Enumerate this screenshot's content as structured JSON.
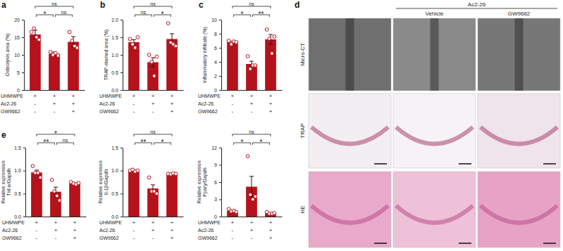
{
  "figure": {
    "panel_labels": [
      "a",
      "b",
      "c",
      "d",
      "e"
    ]
  },
  "treatment_table": {
    "rows": [
      {
        "label": "UHMWPE",
        "signs": [
          "+",
          "+",
          "+"
        ]
      },
      {
        "label": "Ac2-26",
        "signs": [
          "-",
          "+",
          "+"
        ]
      },
      {
        "label": "GW9662",
        "signs": [
          "-",
          "-",
          "+"
        ]
      }
    ]
  },
  "image_panel": {
    "group": "Ac2-26",
    "columns": [
      "Vehicle",
      "GW9662"
    ],
    "rows": [
      "Micro-CT",
      "TRAP",
      "HE"
    ]
  },
  "chart_data": [
    {
      "type": "bar",
      "ylabel": [
        "Osteolysis area (%)"
      ],
      "categories": [
        null,
        null,
        null
      ],
      "values": [
        15.8,
        10.3,
        13.7
      ],
      "errors": [
        1.2,
        0.5,
        1.5
      ],
      "points": [
        [
          16.5,
          17.5,
          15,
          14.3
        ],
        [
          10.8,
          10,
          10.5,
          9.8
        ],
        [
          16.5,
          14,
          12.5,
          12
        ]
      ],
      "color": "#b5121b",
      "ylim": [
        0,
        20
      ],
      "yticks": [
        0,
        5,
        10,
        15,
        20
      ],
      "annotations": [
        {
          "between": [
            0,
            1
          ],
          "label": "*"
        },
        {
          "between": [
            1,
            2
          ],
          "label": "ns"
        },
        {
          "between": [
            0,
            2
          ],
          "label": "ns"
        }
      ]
    },
    {
      "type": "bar",
      "ylabel": [
        "TRAP-stained area (%)"
      ],
      "categories": [
        null,
        null,
        null
      ],
      "values": [
        1.36,
        0.79,
        1.45
      ],
      "errors": [
        0.07,
        0.13,
        0.15
      ],
      "points": [
        [
          1.45,
          1.3,
          1.2,
          1.5
        ],
        [
          1.0,
          0.8,
          0.4,
          0.95
        ],
        [
          1.9,
          1.35,
          1.3,
          1.25
        ]
      ],
      "color": "#b5121b",
      "ylim": [
        0,
        2
      ],
      "yticks": [
        {
          "value": 0,
          "label": "0.0"
        },
        {
          "value": 0.5,
          "label": "0.5"
        },
        {
          "value": 1,
          "label": "1.0"
        },
        {
          "value": 1.5,
          "label": "1.5"
        },
        {
          "value": 2,
          "label": "2.0"
        }
      ],
      "annotations": [
        {
          "between": [
            0,
            1
          ],
          "label": "ns"
        },
        {
          "between": [
            1,
            2
          ],
          "label": "*"
        },
        {
          "between": [
            0,
            2
          ],
          "label": "ns"
        }
      ]
    },
    {
      "type": "bar",
      "ylabel": [
        "Inflammatory infiltrate (%)"
      ],
      "categories": [
        null,
        null,
        null
      ],
      "values": [
        6.8,
        3.7,
        7.2
      ],
      "errors": [
        0.12,
        0.4,
        0.7
      ],
      "points": [
        [
          7.0,
          6.5,
          6.9,
          6.8
        ],
        [
          4.8,
          3.0,
          3.5,
          3.5
        ],
        [
          8.6,
          7.3,
          5.2,
          7.6
        ]
      ],
      "color": "#b5121b",
      "ylim": [
        0,
        10
      ],
      "yticks": [
        0,
        2,
        4,
        6,
        8,
        10
      ],
      "annotations": [
        {
          "between": [
            0,
            1
          ],
          "label": "*"
        },
        {
          "between": [
            1,
            2
          ],
          "label": "**"
        },
        {
          "between": [
            0,
            2
          ],
          "label": "ns"
        }
      ]
    },
    {
      "type": "bar",
      "ylabel": [
        "Relative expression",
        "Tnf-α/Gapdh"
      ],
      "categories": [
        null,
        null,
        null
      ],
      "values": [
        0.96,
        0.54,
        0.72
      ],
      "errors": [
        0.05,
        0.1,
        0.01
      ],
      "points": [
        [
          1.1,
          0.95,
          0.95,
          0.85
        ],
        [
          0.8,
          0.55,
          0.45,
          0.35
        ],
        [
          0.75,
          0.72,
          0.7,
          0.73
        ]
      ],
      "color": "#b5121b",
      "ylim": [
        0,
        1.5
      ],
      "yticks": [
        {
          "value": 0,
          "label": "0.0"
        },
        {
          "value": 0.5,
          "label": "0.5"
        },
        {
          "value": 1,
          "label": "1.0"
        },
        {
          "value": 1.5,
          "label": "1.5"
        }
      ],
      "annotations": [
        {
          "between": [
            0,
            1
          ],
          "label": "**"
        },
        {
          "between": [
            1,
            2
          ],
          "label": "ns"
        },
        {
          "between": [
            0,
            2
          ],
          "label": "*"
        }
      ]
    },
    {
      "type": "bar",
      "ylabel": [
        "Relative expression",
        "Il-1β/Gapdh"
      ],
      "categories": [
        null,
        null,
        null
      ],
      "values": [
        1.0,
        0.61,
        0.93
      ],
      "errors": [
        0.01,
        0.08,
        0.005
      ],
      "points": [
        [
          1.0,
          1.02,
          0.98,
          1.0
        ],
        [
          0.85,
          0.55,
          0.55,
          0.5
        ],
        [
          0.93,
          0.92,
          0.94,
          0.93
        ]
      ],
      "color": "#b5121b",
      "ylim": [
        0,
        1.5
      ],
      "yticks": [
        {
          "value": 0,
          "label": "0.0"
        },
        {
          "value": 0.5,
          "label": "0.5"
        },
        {
          "value": 1,
          "label": "1.0"
        },
        {
          "value": 1.5,
          "label": "1.5"
        }
      ],
      "annotations": [
        {
          "between": [
            0,
            1
          ],
          "label": "**"
        },
        {
          "between": [
            1,
            2
          ],
          "label": "*"
        },
        {
          "between": [
            0,
            2
          ],
          "label": "ns"
        }
      ]
    },
    {
      "type": "bar",
      "ylabel": [
        "Relative expression",
        "Pparγ/Gapdh"
      ],
      "categories": [
        null,
        null,
        null
      ],
      "values": [
        1.0,
        5.2,
        0.6
      ],
      "errors": [
        0.1,
        1.8,
        0.07
      ],
      "points": [
        [
          1.3,
          0.9,
          1.0,
          0.8
        ],
        [
          10.5,
          3.8,
          3,
          3.5
        ],
        [
          0.8,
          0.5,
          0.5,
          0.6
        ]
      ],
      "color": "#b5121b",
      "ylim": [
        0,
        12
      ],
      "yticks": [
        0,
        3,
        6,
        9,
        12
      ],
      "annotations": [
        {
          "between": [
            0,
            1
          ],
          "label": "*"
        },
        {
          "between": [
            1,
            2
          ],
          "label": "*"
        },
        {
          "between": [
            0,
            2
          ],
          "label": "ns"
        }
      ]
    }
  ]
}
